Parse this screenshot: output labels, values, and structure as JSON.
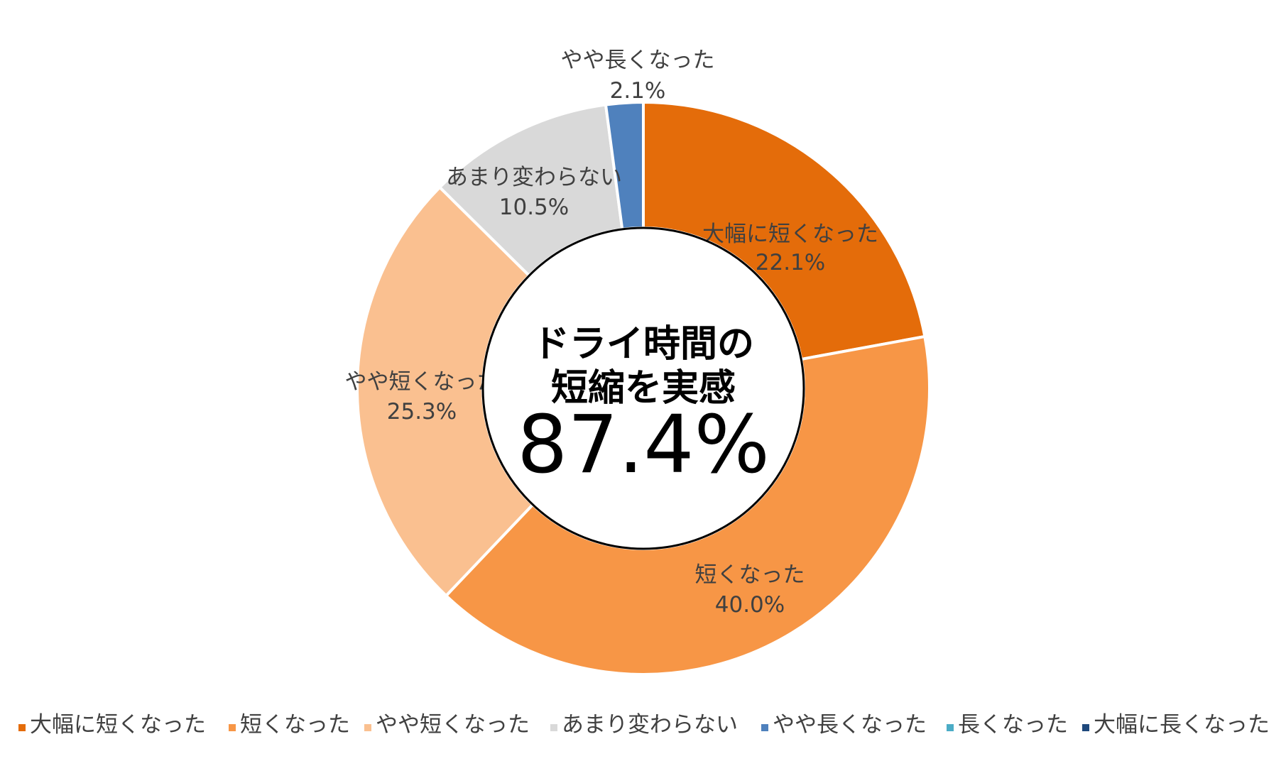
{
  "chart_data": {
    "type": "pie",
    "variant": "donut",
    "categories": [
      "大幅に短くなった",
      "短くなった",
      "やや短くなった",
      "あまり変わらない",
      "やや長くなった",
      "長くなった",
      "大幅に長くなった"
    ],
    "values": [
      22.1,
      40.0,
      25.3,
      10.5,
      2.1,
      0,
      0
    ],
    "data_labels": [
      "22.1%",
      "40.0%",
      "25.3%",
      "10.5%",
      "2.1%",
      "",
      ""
    ],
    "colors": [
      "#E46C0A",
      "#F79646",
      "#FAC090",
      "#D9D9D9",
      "#4F81BD",
      "#4BACC6",
      "#1F497D"
    ],
    "center_text": {
      "lines": [
        "ドライ時間の",
        "短縮を実感"
      ],
      "value": "87.4%"
    },
    "legend_position": "bottom"
  }
}
